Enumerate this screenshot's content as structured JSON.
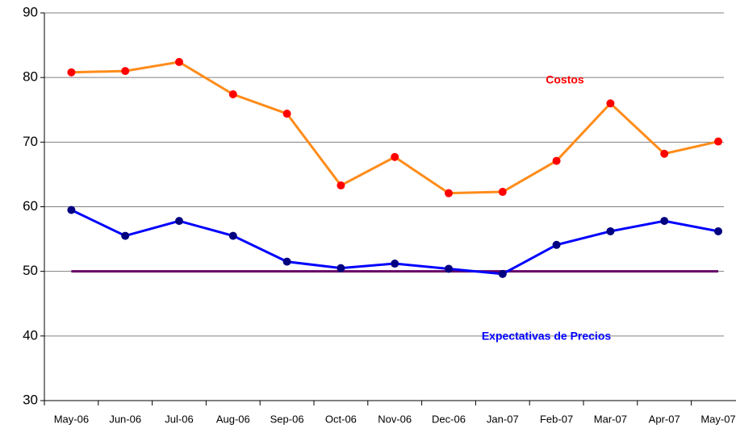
{
  "chart_data": {
    "type": "line",
    "categories": [
      "May-06",
      "Jun-06",
      "Jul-06",
      "Aug-06",
      "Sep-06",
      "Oct-06",
      "Nov-06",
      "Dec-06",
      "Jan-07",
      "Feb-07",
      "Mar-07",
      "Apr-07",
      "May-07"
    ],
    "series": [
      {
        "name": "Costos",
        "color": "#ff8c1a",
        "marker_color": "#ff0000",
        "values": [
          80.8,
          81.0,
          82.4,
          77.4,
          74.4,
          63.3,
          67.7,
          62.1,
          62.3,
          67.1,
          76.0,
          68.2,
          70.1
        ]
      },
      {
        "name": "Expectativas de Precios",
        "color": "#0000ff",
        "marker_color": "#000080",
        "values": [
          59.5,
          55.5,
          57.8,
          55.5,
          51.5,
          50.5,
          51.2,
          50.4,
          49.6,
          54.1,
          56.2,
          57.8,
          56.2
        ]
      }
    ],
    "reference_line": {
      "value": 50,
      "color": "#660066"
    },
    "ylim": [
      30,
      90
    ],
    "yticks": [
      30,
      40,
      50,
      60,
      70,
      80,
      90
    ],
    "grid": true
  }
}
